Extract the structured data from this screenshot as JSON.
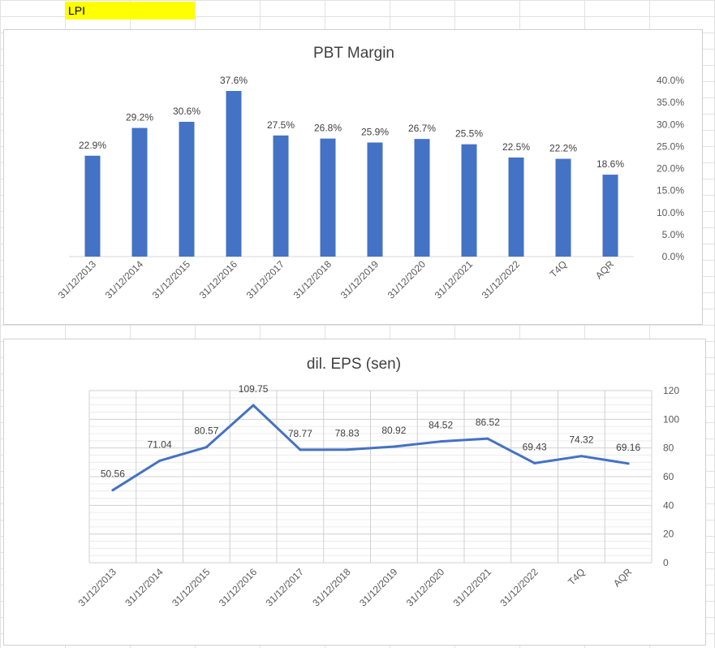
{
  "sheet": {
    "cell_label": "LPI"
  },
  "chart_data": [
    {
      "type": "bar",
      "title": "PBT Margin",
      "categories": [
        "31/12/2013",
        "31/12/2014",
        "31/12/2015",
        "31/12/2016",
        "31/12/2017",
        "31/12/2018",
        "31/12/2019",
        "31/12/2020",
        "31/12/2021",
        "31/12/2022",
        "T4Q",
        "AQR"
      ],
      "values": [
        22.9,
        29.2,
        30.6,
        37.6,
        27.5,
        26.8,
        25.9,
        26.7,
        25.5,
        22.5,
        22.2,
        18.6
      ],
      "data_labels": [
        "22.9%",
        "29.2%",
        "30.6%",
        "37.6%",
        "27.5%",
        "26.8%",
        "25.9%",
        "26.7%",
        "25.5%",
        "22.5%",
        "22.2%",
        "18.6%"
      ],
      "ylim": [
        0,
        40
      ],
      "y_ticks": [
        "0.0%",
        "5.0%",
        "10.0%",
        "15.0%",
        "20.0%",
        "25.0%",
        "30.0%",
        "35.0%",
        "40.0%"
      ],
      "y_axis_position": "right",
      "grid": false,
      "color": "#4472c4"
    },
    {
      "type": "line",
      "title": "dil. EPS (sen)",
      "categories": [
        "31/12/2013",
        "31/12/2014",
        "31/12/2015",
        "31/12/2016",
        "31/12/2017",
        "31/12/2018",
        "31/12/2019",
        "31/12/2020",
        "31/12/2021",
        "31/12/2022",
        "T4Q",
        "AQR"
      ],
      "values": [
        50.56,
        71.04,
        80.57,
        109.75,
        78.77,
        78.83,
        80.92,
        84.52,
        86.52,
        69.43,
        74.32,
        69.16
      ],
      "data_labels": [
        "50.56",
        "71.04",
        "80.57",
        "109.75",
        "78.77",
        "78.83",
        "80.92",
        "84.52",
        "86.52",
        "69.43",
        "74.32",
        "69.16"
      ],
      "ylim": [
        0,
        120
      ],
      "y_ticks": [
        "0",
        "20",
        "40",
        "60",
        "80",
        "100",
        "120"
      ],
      "y_axis_position": "right",
      "grid": true,
      "color": "#4472c4"
    }
  ]
}
